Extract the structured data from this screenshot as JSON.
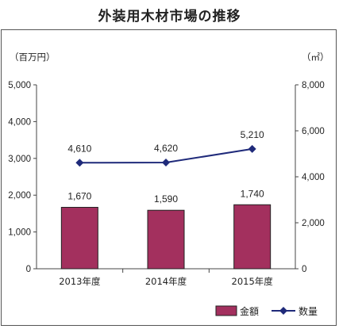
{
  "chart_data": {
    "type": "bar",
    "title": "外装用木材市場の推移",
    "categories": [
      "2013年度",
      "2014年度",
      "2015年度"
    ],
    "series": [
      {
        "name": "金額",
        "kind": "bar",
        "axis": "left",
        "values": [
          1670,
          1590,
          1740
        ],
        "labels": [
          "1,670",
          "1,590",
          "1,740"
        ],
        "color": "#a3305e"
      },
      {
        "name": "数量",
        "kind": "line",
        "axis": "right",
        "values": [
          4610,
          4620,
          5210
        ],
        "labels": [
          "4,610",
          "4,620",
          "5,210"
        ],
        "color": "#1f2a7a"
      }
    ],
    "y_left": {
      "unit": "（百万円）",
      "ylim": [
        0,
        5000
      ],
      "ticks": [
        "0",
        "1,000",
        "2,000",
        "3,000",
        "4,000",
        "5,000"
      ]
    },
    "y_right": {
      "unit": "（㎡）",
      "ylim": [
        0,
        8000
      ],
      "ticks": [
        "0",
        "2,000",
        "4,000",
        "6,000",
        "8,000"
      ]
    },
    "legend_position": "bottom-right",
    "grid": false
  }
}
